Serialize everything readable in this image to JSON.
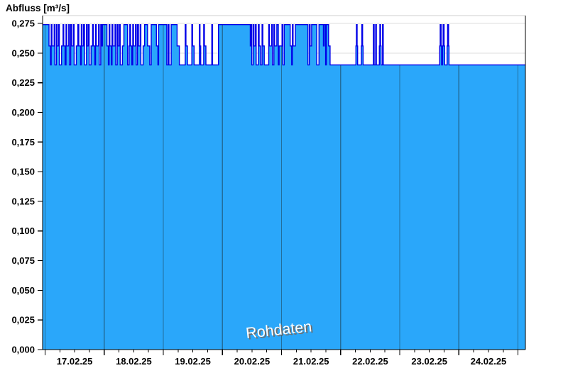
{
  "title": "Abfluss [m³/s]",
  "watermark": "Rohdaten",
  "colors": {
    "fill": "#2AA7FA",
    "line": "#0000E8",
    "grid": "#DEDEDE",
    "top_border": "#CFCFCF",
    "frame": "#000000",
    "day_line": "#226E9C",
    "watermark_fill": "#FFFFFF",
    "watermark_shadow": "#6E6E6E"
  },
  "chart_data": {
    "type": "area",
    "title": "Abfluss [m³/s]",
    "series_name": "Rohdaten",
    "unit": "m³/s",
    "ylabel": "Abfluss [m³/s]",
    "xlabel": "",
    "ylim": [
      0,
      0.2816
    ],
    "y_tick_step": 0.025,
    "grid": "horizontal-light, day-boundaries-vertical",
    "legend_position": "none",
    "watermark_text": "Rohdaten",
    "y_ticks": [
      {
        "v": 0.0,
        "label": "0,000"
      },
      {
        "v": 0.025,
        "label": "0,025"
      },
      {
        "v": 0.05,
        "label": "0,050"
      },
      {
        "v": 0.075,
        "label": "0,075"
      },
      {
        "v": 0.1,
        "label": "0,100"
      },
      {
        "v": 0.125,
        "label": "0,125"
      },
      {
        "v": 0.15,
        "label": "0,150"
      },
      {
        "v": 0.175,
        "label": "0,175"
      },
      {
        "v": 0.2,
        "label": "0,200"
      },
      {
        "v": 0.225,
        "label": "0,225"
      },
      {
        "v": 0.25,
        "label": "0,250"
      },
      {
        "v": 0.275,
        "label": "0,275"
      }
    ],
    "x_days": [
      "17.02.25",
      "18.02.25",
      "19.02.25",
      "20.02.25",
      "21.02.25",
      "22.02.25",
      "23.02.25",
      "24.02.25"
    ],
    "x_total_hours": 196,
    "first_midnight_hour": 1,
    "hours_per_day": 24,
    "minor_tick_hours": 6,
    "levels": [
      0.24,
      0.256,
      0.274
    ],
    "segments": [
      [
        2.3,
        0.274
      ],
      [
        0.3,
        0.274
      ],
      [
        0.6,
        0.256
      ],
      [
        0.3,
        0.24
      ],
      [
        0.3,
        0.274
      ],
      [
        0.9,
        0.256
      ],
      [
        0.3,
        0.274
      ],
      [
        0.6,
        0.24
      ],
      [
        0.3,
        0.274
      ],
      [
        0.6,
        0.256
      ],
      [
        0.3,
        0.274
      ],
      [
        0.9,
        0.24
      ],
      [
        0.6,
        0.256
      ],
      [
        0.3,
        0.274
      ],
      [
        0.5,
        0.256
      ],
      [
        0.4,
        0.24
      ],
      [
        0.3,
        0.274
      ],
      [
        0.8,
        0.256
      ],
      [
        0.3,
        0.274
      ],
      [
        0.5,
        0.24
      ],
      [
        0.4,
        0.274
      ],
      [
        0.7,
        0.256
      ],
      [
        0.3,
        0.274
      ],
      [
        0.9,
        0.24
      ],
      [
        0.6,
        0.256
      ],
      [
        0.4,
        0.274
      ],
      [
        0.7,
        0.256
      ],
      [
        0.3,
        0.24
      ],
      [
        0.3,
        0.274
      ],
      [
        0.6,
        0.256
      ],
      [
        0.4,
        0.274
      ],
      [
        0.8,
        0.24
      ],
      [
        0.3,
        0.274
      ],
      [
        0.5,
        0.256
      ],
      [
        0.3,
        0.274
      ],
      [
        0.8,
        0.24
      ],
      [
        0.6,
        0.256
      ],
      [
        0.3,
        0.274
      ],
      [
        0.6,
        0.256
      ],
      [
        0.3,
        0.24
      ],
      [
        0.3,
        0.274
      ],
      [
        0.9,
        0.256
      ],
      [
        0.3,
        0.274
      ],
      [
        0.6,
        0.24
      ],
      [
        0.3,
        0.274
      ],
      [
        0.4,
        0.256
      ],
      [
        1.8,
        0.274
      ],
      [
        0.6,
        0.256
      ],
      [
        0.3,
        0.24
      ],
      [
        0.3,
        0.274
      ],
      [
        0.6,
        0.256
      ],
      [
        0.3,
        0.24
      ],
      [
        0.3,
        0.274
      ],
      [
        0.9,
        0.256
      ],
      [
        0.3,
        0.274
      ],
      [
        0.6,
        0.24
      ],
      [
        0.3,
        0.274
      ],
      [
        0.6,
        0.256
      ],
      [
        0.3,
        0.274
      ],
      [
        0.9,
        0.24
      ],
      [
        0.6,
        0.256
      ],
      [
        1.5,
        0.274
      ],
      [
        0.6,
        0.24
      ],
      [
        0.3,
        0.256
      ],
      [
        0.3,
        0.274
      ],
      [
        0.5,
        0.256
      ],
      [
        0.4,
        0.24
      ],
      [
        0.3,
        0.274
      ],
      [
        0.8,
        0.256
      ],
      [
        0.3,
        0.274
      ],
      [
        0.5,
        0.24
      ],
      [
        0.4,
        0.274
      ],
      [
        0.7,
        0.256
      ],
      [
        0.3,
        0.274
      ],
      [
        0.9,
        0.24
      ],
      [
        0.6,
        0.256
      ],
      [
        1.2,
        0.274
      ],
      [
        0.9,
        0.256
      ],
      [
        0.6,
        0.24
      ],
      [
        2.1,
        0.274
      ],
      [
        0.6,
        0.256
      ],
      [
        0.3,
        0.24
      ],
      [
        1.2,
        0.274
      ],
      [
        2.1,
        0.274
      ],
      [
        0.6,
        0.24
      ],
      [
        0.3,
        0.274
      ],
      [
        0.9,
        0.24
      ],
      [
        2.4,
        0.274
      ],
      [
        0.9,
        0.256
      ],
      [
        0.9,
        0.24
      ],
      [
        1.5,
        0.24
      ],
      [
        0.3,
        0.274
      ],
      [
        0.6,
        0.256
      ],
      [
        1.8,
        0.24
      ],
      [
        0.3,
        0.274
      ],
      [
        0.6,
        0.256
      ],
      [
        2.1,
        0.24
      ],
      [
        0.3,
        0.274
      ],
      [
        0.3,
        0.256
      ],
      [
        1.2,
        0.24
      ],
      [
        0.3,
        0.274
      ],
      [
        0.6,
        0.256
      ],
      [
        2.4,
        0.24
      ],
      [
        0.3,
        0.274
      ],
      [
        2.4,
        0.24
      ],
      [
        0.9,
        0.274
      ],
      [
        12.0,
        0.274
      ],
      [
        0.3,
        0.256
      ],
      [
        0.3,
        0.274
      ],
      [
        0.6,
        0.24
      ],
      [
        0.3,
        0.274
      ],
      [
        0.6,
        0.256
      ],
      [
        0.3,
        0.274
      ],
      [
        0.9,
        0.24
      ],
      [
        0.3,
        0.274
      ],
      [
        0.6,
        0.256
      ],
      [
        0.6,
        0.24
      ],
      [
        0.3,
        0.274
      ],
      [
        0.6,
        0.256
      ],
      [
        1.8,
        0.24
      ],
      [
        0.3,
        0.274
      ],
      [
        0.9,
        0.256
      ],
      [
        0.3,
        0.274
      ],
      [
        0.6,
        0.24
      ],
      [
        0.3,
        0.274
      ],
      [
        0.9,
        0.256
      ],
      [
        0.6,
        0.274
      ],
      [
        0.3,
        0.24
      ],
      [
        0.3,
        0.256
      ],
      [
        0.9,
        0.256
      ],
      [
        0.3,
        0.274
      ],
      [
        0.6,
        0.24
      ],
      [
        2.4,
        0.274
      ],
      [
        0.6,
        0.256
      ],
      [
        0.3,
        0.24
      ],
      [
        0.3,
        0.274
      ],
      [
        0.9,
        0.256
      ],
      [
        5.1,
        0.274
      ],
      [
        0.6,
        0.24
      ],
      [
        0.3,
        0.274
      ],
      [
        0.6,
        0.256
      ],
      [
        2.1,
        0.274
      ],
      [
        0.9,
        0.24
      ],
      [
        1.8,
        0.274
      ],
      [
        0.3,
        0.256
      ],
      [
        0.6,
        0.274
      ],
      [
        0.3,
        0.24
      ],
      [
        0.9,
        0.274
      ],
      [
        0.6,
        0.256
      ],
      [
        3.6,
        0.24
      ],
      [
        6.9,
        0.24
      ],
      [
        0.2,
        0.256
      ],
      [
        0.3,
        0.274
      ],
      [
        0.2,
        0.256
      ],
      [
        1.5,
        0.24
      ],
      [
        0.2,
        0.256
      ],
      [
        0.3,
        0.274
      ],
      [
        0.2,
        0.256
      ],
      [
        4.2,
        0.24
      ],
      [
        0.3,
        0.274
      ],
      [
        0.6,
        0.24
      ],
      [
        0.3,
        0.274
      ],
      [
        1.2,
        0.24
      ],
      [
        0.2,
        0.256
      ],
      [
        0.3,
        0.274
      ],
      [
        0.2,
        0.256
      ],
      [
        0.6,
        0.24
      ],
      [
        0.3,
        0.274
      ],
      [
        6.0,
        0.24
      ],
      [
        16.9,
        0.24
      ],
      [
        0.2,
        0.256
      ],
      [
        0.4,
        0.274
      ],
      [
        0.2,
        0.256
      ],
      [
        0.4,
        0.24
      ],
      [
        0.2,
        0.256
      ],
      [
        0.4,
        0.274
      ],
      [
        0.2,
        0.256
      ],
      [
        1.0,
        0.24
      ],
      [
        0.2,
        0.256
      ],
      [
        0.4,
        0.274
      ],
      [
        0.2,
        0.256
      ],
      [
        3.3,
        0.24
      ],
      [
        27.7,
        0.24
      ]
    ]
  }
}
